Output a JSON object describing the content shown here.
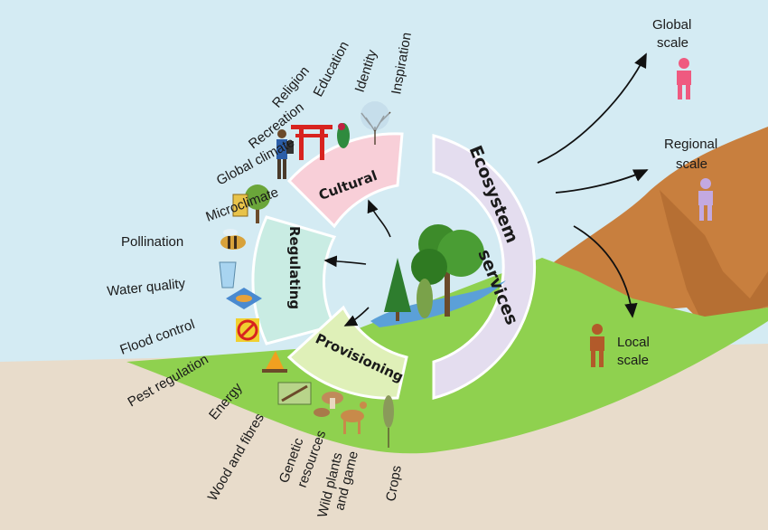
{
  "center": {
    "line1": "Ecosystem",
    "line2": "services"
  },
  "categories": {
    "cultural": "Cultural",
    "regulating": "Regulating",
    "provisioning": "Provisioning"
  },
  "cultural_services": [
    "Inspiration",
    "Identity",
    "Education",
    "Religion",
    "Recreation"
  ],
  "regulating_services": [
    "Global climate",
    "Microclimate",
    "Pollination",
    "Water quality",
    "Flood control",
    "Pest regulation"
  ],
  "provisioning_services": {
    "energy": "Energy",
    "wood": "Wood and fibres",
    "genetic_1": "Genetic",
    "genetic_2": "resources",
    "wild_1": "Wild plants",
    "wild_2": "and game",
    "crops": "Crops"
  },
  "scales": {
    "global_1": "Global",
    "global_2": "scale",
    "regional_1": "Regional",
    "regional_2": "scale",
    "local_1": "Local",
    "local_2": "scale"
  },
  "colors": {
    "sky": "#d4ebf3",
    "ground": "#e8dccb",
    "grass": "#8fd14f",
    "hill": "#c87f3e",
    "cultural_band": "#f8cfd8",
    "regulating_band": "#c9ece3",
    "provisioning_band": "#dff0b8",
    "ecosystem_band": "#e4ddef",
    "global_person": "#ef5a80",
    "regional_person": "#c3a9e0",
    "local_person": "#b25a2a"
  }
}
